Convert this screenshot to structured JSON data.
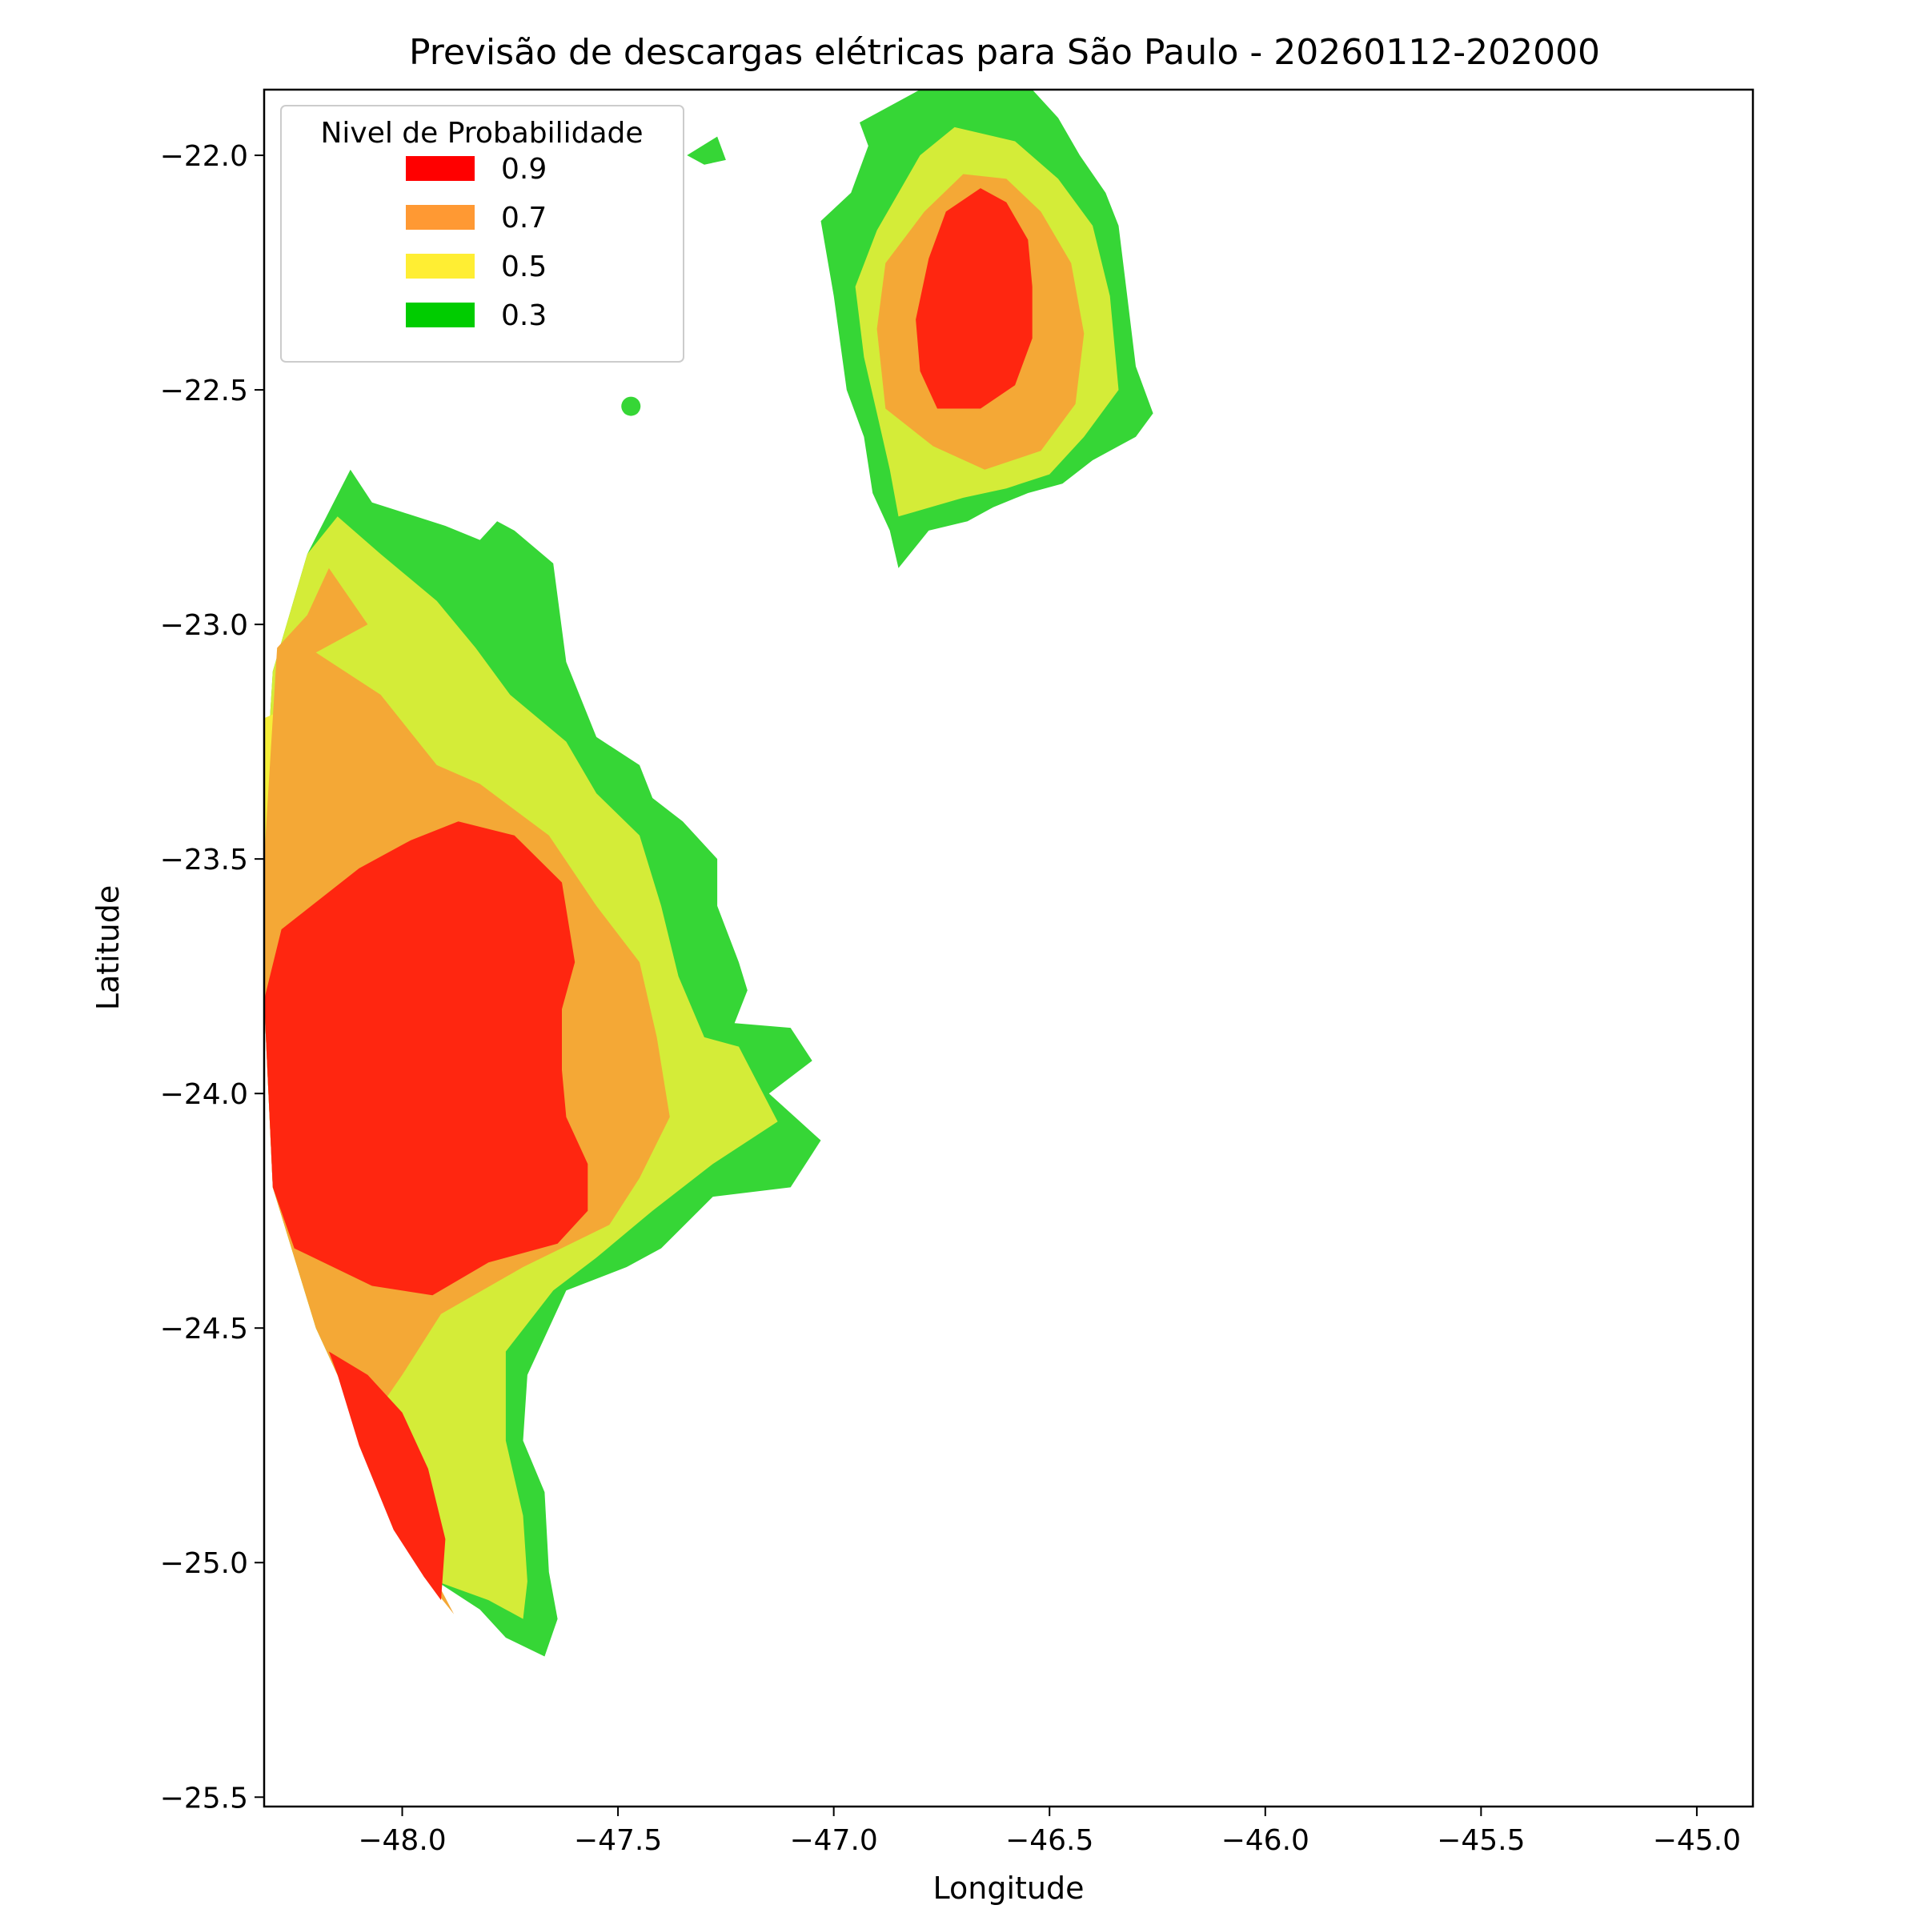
{
  "chart_data": {
    "type": "contour-map",
    "title": "Previsão de descargas elétricas para São Paulo - 20260112-202000",
    "xlabel": "Longitude",
    "ylabel": "Latitude",
    "xlim": [
      -48.32,
      -44.87
    ],
    "ylim": [
      -25.52,
      -21.86
    ],
    "xticks": [
      -48.0,
      -47.5,
      -47.0,
      -46.5,
      -46.0,
      -45.5,
      -45.0
    ],
    "xtick_labels": [
      "−48.0",
      "−47.5",
      "−47.0",
      "−46.5",
      "−46.0",
      "−45.5",
      "−45.0"
    ],
    "yticks": [
      -22.0,
      -22.5,
      -23.0,
      -23.5,
      -24.0,
      -24.5,
      -25.0,
      -25.5
    ],
    "ytick_labels": [
      "−22.0",
      "−22.5",
      "−23.0",
      "−23.5",
      "−24.0",
      "−24.5",
      "−25.0",
      "−25.5"
    ],
    "legend": {
      "title": "Nivel de Probabilidade",
      "position": "top-left",
      "entries": [
        {
          "label": "0.9",
          "color": "#ff0000"
        },
        {
          "label": "0.7",
          "color": "#ff9933"
        },
        {
          "label": "0.5",
          "color": "#ffee33"
        },
        {
          "label": "0.3",
          "color": "#00cc00"
        }
      ]
    },
    "fill_colors": {
      "0.3": "#36d636",
      "0.5": "#d4ec38",
      "0.55": "#f5ee38",
      "0.7": "#f4a836",
      "0.9": "#ff2610",
      "faint": "#d4f3d8"
    },
    "regions": [
      {
        "name": "southwest-cell",
        "levels": [
          {
            "level": "0.3",
            "points": [
              [
                -48.12,
                -22.67
              ],
              [
                -48.07,
                -22.74
              ],
              [
                -47.9,
                -22.79
              ],
              [
                -47.82,
                -22.82
              ],
              [
                -47.78,
                -22.78
              ],
              [
                -47.74,
                -22.8
              ],
              [
                -47.65,
                -22.87
              ],
              [
                -47.62,
                -23.08
              ],
              [
                -47.55,
                -23.24
              ],
              [
                -47.45,
                -23.3
              ],
              [
                -47.42,
                -23.37
              ],
              [
                -47.35,
                -23.42
              ],
              [
                -47.27,
                -23.5
              ],
              [
                -47.27,
                -23.6
              ],
              [
                -47.22,
                -23.72
              ],
              [
                -47.2,
                -23.78
              ],
              [
                -47.23,
                -23.85
              ],
              [
                -47.1,
                -23.86
              ],
              [
                -47.05,
                -23.93
              ],
              [
                -47.15,
                -24.0
              ],
              [
                -47.03,
                -24.1
              ],
              [
                -47.1,
                -24.2
              ],
              [
                -47.28,
                -24.22
              ],
              [
                -47.4,
                -24.33
              ],
              [
                -47.48,
                -24.37
              ],
              [
                -47.62,
                -24.42
              ],
              [
                -47.71,
                -24.6
              ],
              [
                -47.72,
                -24.74
              ],
              [
                -47.67,
                -24.85
              ],
              [
                -47.66,
                -25.02
              ],
              [
                -47.64,
                -25.12
              ],
              [
                -47.67,
                -25.2
              ],
              [
                -47.76,
                -25.16
              ],
              [
                -47.82,
                -25.1
              ],
              [
                -47.92,
                -25.04
              ],
              [
                -48.0,
                -24.9
              ],
              [
                -48.1,
                -24.7
              ],
              [
                -48.2,
                -24.5
              ],
              [
                -48.3,
                -24.2
              ],
              [
                -48.32,
                -23.8
              ],
              [
                -48.32,
                -23.4
              ],
              [
                -48.3,
                -23.1
              ],
              [
                -48.22,
                -22.85
              ]
            ]
          },
          {
            "level": "0.5",
            "points": [
              [
                -48.15,
                -22.77
              ],
              [
                -48.05,
                -22.85
              ],
              [
                -47.92,
                -22.95
              ],
              [
                -47.83,
                -23.05
              ],
              [
                -47.75,
                -23.15
              ],
              [
                -47.62,
                -23.25
              ],
              [
                -47.55,
                -23.36
              ],
              [
                -47.45,
                -23.45
              ],
              [
                -47.4,
                -23.6
              ],
              [
                -47.36,
                -23.75
              ],
              [
                -47.3,
                -23.88
              ],
              [
                -47.22,
                -23.9
              ],
              [
                -47.13,
                -24.06
              ],
              [
                -47.28,
                -24.15
              ],
              [
                -47.42,
                -24.25
              ],
              [
                -47.55,
                -24.35
              ],
              [
                -47.65,
                -24.42
              ],
              [
                -47.76,
                -24.55
              ],
              [
                -47.76,
                -24.74
              ],
              [
                -47.72,
                -24.9
              ],
              [
                -47.71,
                -25.04
              ],
              [
                -47.72,
                -25.12
              ],
              [
                -47.8,
                -25.08
              ],
              [
                -47.92,
                -25.04
              ],
              [
                -48.0,
                -24.9
              ],
              [
                -48.1,
                -24.7
              ],
              [
                -48.2,
                -24.5
              ],
              [
                -48.3,
                -24.2
              ],
              [
                -48.32,
                -23.8
              ],
              [
                -48.32,
                -23.4
              ],
              [
                -48.3,
                -23.1
              ],
              [
                -48.22,
                -22.85
              ]
            ]
          },
          {
            "level": "0.55",
            "points": [
              [
                -48.27,
                -23.18
              ],
              [
                -48.2,
                -23.2
              ],
              [
                -48.17,
                -23.32
              ],
              [
                -48.2,
                -23.45
              ],
              [
                -48.32,
                -23.5
              ],
              [
                -48.32,
                -23.2
              ]
            ]
          },
          {
            "level": "0.7",
            "points": [
              [
                -48.17,
                -22.88
              ],
              [
                -48.08,
                -23.0
              ],
              [
                -48.2,
                -23.06
              ],
              [
                -48.05,
                -23.15
              ],
              [
                -47.92,
                -23.3
              ],
              [
                -47.82,
                -23.34
              ],
              [
                -47.66,
                -23.45
              ],
              [
                -47.55,
                -23.6
              ],
              [
                -47.45,
                -23.72
              ],
              [
                -47.41,
                -23.88
              ],
              [
                -47.38,
                -24.05
              ],
              [
                -47.45,
                -24.18
              ],
              [
                -47.52,
                -24.28
              ],
              [
                -47.72,
                -24.37
              ],
              [
                -47.91,
                -24.47
              ],
              [
                -48.0,
                -24.6
              ],
              [
                -48.09,
                -24.72
              ],
              [
                -48.02,
                -24.9
              ],
              [
                -47.95,
                -25.03
              ],
              [
                -47.88,
                -25.11
              ],
              [
                -48.0,
                -24.9
              ],
              [
                -48.1,
                -24.7
              ],
              [
                -48.2,
                -24.5
              ],
              [
                -48.3,
                -24.2
              ],
              [
                -48.32,
                -23.8
              ],
              [
                -48.32,
                -23.5
              ],
              [
                -48.29,
                -23.05
              ],
              [
                -48.22,
                -22.98
              ]
            ]
          },
          {
            "level": "0.9",
            "points": [
              [
                -47.87,
                -23.42
              ],
              [
                -47.74,
                -23.45
              ],
              [
                -47.63,
                -23.55
              ],
              [
                -47.6,
                -23.72
              ],
              [
                -47.63,
                -23.82
              ],
              [
                -47.63,
                -23.95
              ],
              [
                -47.62,
                -24.05
              ],
              [
                -47.57,
                -24.15
              ],
              [
                -47.57,
                -24.25
              ],
              [
                -47.64,
                -24.32
              ],
              [
                -47.8,
                -24.36
              ],
              [
                -47.93,
                -24.43
              ],
              [
                -48.07,
                -24.41
              ],
              [
                -48.25,
                -24.33
              ],
              [
                -48.3,
                -24.2
              ],
              [
                -48.32,
                -23.8
              ],
              [
                -48.28,
                -23.65
              ],
              [
                -48.1,
                -23.52
              ],
              [
                -47.98,
                -23.46
              ]
            ]
          },
          {
            "level": "0.9",
            "points": [
              [
                -48.17,
                -24.55
              ],
              [
                -48.08,
                -24.6
              ],
              [
                -48.0,
                -24.68
              ],
              [
                -47.94,
                -24.8
              ],
              [
                -47.9,
                -24.95
              ],
              [
                -47.91,
                -25.08
              ],
              [
                -47.95,
                -25.03
              ],
              [
                -48.02,
                -24.93
              ],
              [
                -48.1,
                -24.75
              ],
              [
                -48.15,
                -24.6
              ]
            ]
          }
        ]
      },
      {
        "name": "northeast-cell",
        "levels": [
          {
            "level": "0.3",
            "points": [
              [
                -46.54,
                -21.86
              ],
              [
                -46.8,
                -21.86
              ],
              [
                -46.94,
                -21.93
              ],
              [
                -46.92,
                -21.98
              ],
              [
                -46.96,
                -22.08
              ],
              [
                -47.03,
                -22.14
              ],
              [
                -47.0,
                -22.3
              ],
              [
                -46.97,
                -22.5
              ],
              [
                -46.93,
                -22.6
              ],
              [
                -46.91,
                -22.72
              ],
              [
                -46.87,
                -22.8
              ],
              [
                -46.85,
                -22.88
              ],
              [
                -46.78,
                -22.8
              ],
              [
                -46.69,
                -22.78
              ],
              [
                -46.63,
                -22.75
              ],
              [
                -46.55,
                -22.72
              ],
              [
                -46.47,
                -22.7
              ],
              [
                -46.4,
                -22.65
              ],
              [
                -46.34,
                -22.62
              ],
              [
                -46.3,
                -22.6
              ],
              [
                -46.26,
                -22.55
              ],
              [
                -46.3,
                -22.45
              ],
              [
                -46.32,
                -22.3
              ],
              [
                -46.34,
                -22.15
              ],
              [
                -46.37,
                -22.08
              ],
              [
                -46.43,
                -22.0
              ],
              [
                -46.48,
                -21.92
              ]
            ]
          },
          {
            "level": "0.5",
            "points": [
              [
                -46.72,
                -21.94
              ],
              [
                -46.8,
                -22.0
              ],
              [
                -46.9,
                -22.16
              ],
              [
                -46.95,
                -22.28
              ],
              [
                -46.93,
                -22.43
              ],
              [
                -46.9,
                -22.55
              ],
              [
                -46.87,
                -22.67
              ],
              [
                -46.85,
                -22.77
              ],
              [
                -46.7,
                -22.73
              ],
              [
                -46.6,
                -22.71
              ],
              [
                -46.5,
                -22.68
              ],
              [
                -46.42,
                -22.6
              ],
              [
                -46.34,
                -22.5
              ],
              [
                -46.36,
                -22.3
              ],
              [
                -46.4,
                -22.15
              ],
              [
                -46.48,
                -22.05
              ],
              [
                -46.58,
                -21.97
              ]
            ]
          },
          {
            "level": "0.7",
            "points": [
              [
                -46.7,
                -22.04
              ],
              [
                -46.79,
                -22.12
              ],
              [
                -46.88,
                -22.23
              ],
              [
                -46.9,
                -22.37
              ],
              [
                -46.88,
                -22.54
              ],
              [
                -46.77,
                -22.62
              ],
              [
                -46.65,
                -22.67
              ],
              [
                -46.52,
                -22.63
              ],
              [
                -46.44,
                -22.53
              ],
              [
                -46.42,
                -22.38
              ],
              [
                -46.45,
                -22.23
              ],
              [
                -46.52,
                -22.12
              ],
              [
                -46.6,
                -22.05
              ]
            ]
          },
          {
            "level": "0.9",
            "points": [
              [
                -46.66,
                -22.07
              ],
              [
                -46.74,
                -22.12
              ],
              [
                -46.78,
                -22.22
              ],
              [
                -46.81,
                -22.35
              ],
              [
                -46.8,
                -22.46
              ],
              [
                -46.76,
                -22.54
              ],
              [
                -46.66,
                -22.54
              ],
              [
                -46.58,
                -22.49
              ],
              [
                -46.54,
                -22.39
              ],
              [
                -46.54,
                -22.28
              ],
              [
                -46.55,
                -22.18
              ],
              [
                -46.6,
                -22.1
              ]
            ]
          }
        ]
      },
      {
        "name": "small-cells",
        "levels": [
          {
            "level": "faint",
            "points": [
              [
                -47.56,
                -22.08
              ],
              [
                -47.44,
                -22.02
              ],
              [
                -47.35,
                -22.0
              ],
              [
                -47.38,
                -22.08
              ]
            ]
          },
          {
            "level": "0.3",
            "points": [
              [
                -47.34,
                -22.0
              ],
              [
                -47.27,
                -21.96
              ],
              [
                -47.25,
                -22.01
              ],
              [
                -47.3,
                -22.02
              ]
            ]
          }
        ]
      }
    ],
    "marker": {
      "level": "0.3",
      "x": -47.47,
      "y": -22.535
    }
  }
}
